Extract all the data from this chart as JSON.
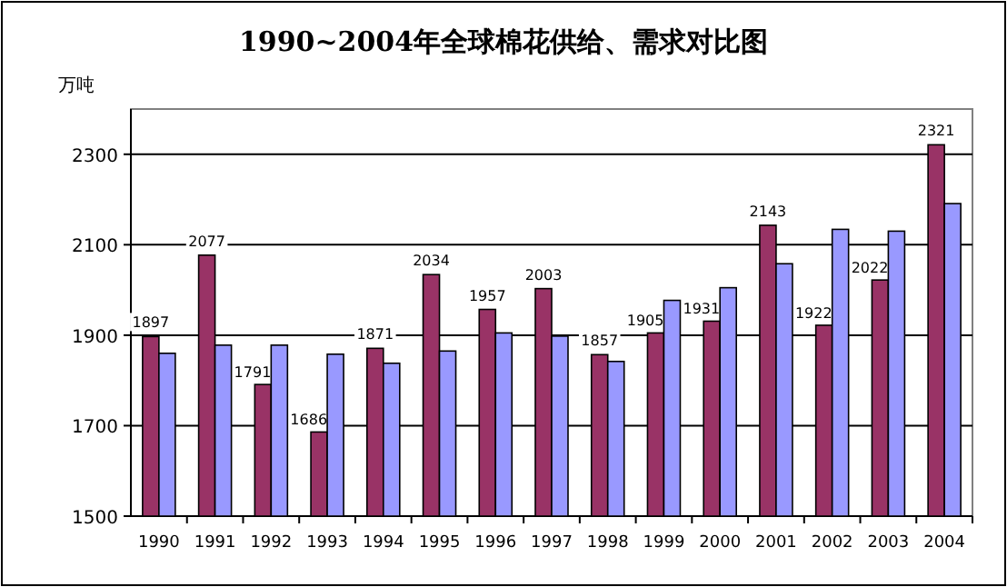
{
  "chart_data": {
    "type": "bar",
    "title": "1990~2004年全球棉花供给、需求对比图",
    "ylabel": "万吨",
    "categories": [
      "1990",
      "1991",
      "1992",
      "1993",
      "1994",
      "1995",
      "1996",
      "1997",
      "1998",
      "1999",
      "2000",
      "2001",
      "2002",
      "2003",
      "2004"
    ],
    "series": [
      {
        "color": "#993366",
        "values": [
          1897,
          2077,
          1791,
          1686,
          1871,
          2034,
          1957,
          2003,
          1857,
          1905,
          1931,
          2143,
          1922,
          2022,
          2321
        ],
        "value_labels": [
          "1897",
          "2077",
          "1791",
          "1686",
          "1871",
          "2034",
          "1957",
          "2003",
          "1857",
          "1905",
          "1931",
          "2143",
          "1922",
          "2022",
          "2321"
        ]
      },
      {
        "color": "#9999ff",
        "values": [
          1860,
          1878,
          1878,
          1858,
          1838,
          1865,
          1905,
          1898,
          1842,
          1977,
          2005,
          2058,
          2134,
          2130,
          2191
        ]
      }
    ],
    "ylim": [
      1500,
      2400
    ],
    "yticks": [
      1500,
      1700,
      1900,
      2100,
      2300
    ],
    "grid": "y"
  }
}
